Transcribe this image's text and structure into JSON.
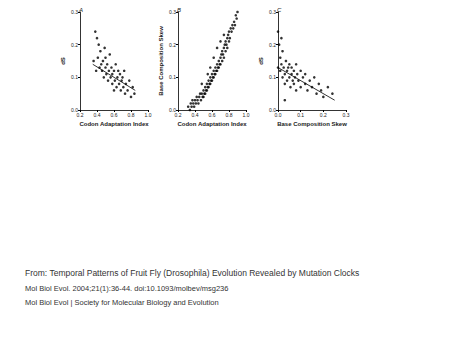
{
  "chart_data": [
    {
      "type": "scatter",
      "title": "A",
      "x_label": "Codon Adaptation Index",
      "y_label": "dS",
      "xlim": [
        0.2,
        1.0
      ],
      "xticks": [
        0.2,
        0.4,
        0.6,
        0.8,
        {
          "value": 1.0,
          "label": "1.0"
        }
      ],
      "ylim": [
        0,
        0.3
      ],
      "yticks": [
        {
          "value": 0,
          "label": "0.0"
        },
        0.1,
        0.2,
        0.3
      ],
      "color": "#000000",
      "marker": "circle",
      "x": [
        0.38,
        0.4,
        0.42,
        0.41,
        0.44,
        0.45,
        0.46,
        0.47,
        0.48,
        0.5,
        0.5,
        0.51,
        0.52,
        0.53,
        0.54,
        0.55,
        0.56,
        0.57,
        0.58,
        0.58,
        0.6,
        0.61,
        0.62,
        0.63,
        0.64,
        0.65,
        0.66,
        0.67,
        0.68,
        0.69,
        0.7,
        0.71,
        0.72,
        0.73,
        0.74,
        0.76,
        0.78,
        0.8,
        0.82,
        0.84,
        0.43,
        0.49,
        0.36,
        0.39,
        0.6
      ],
      "values": [
        0.24,
        0.22,
        0.2,
        0.16,
        0.18,
        0.14,
        0.12,
        0.15,
        0.1,
        0.13,
        0.16,
        0.11,
        0.14,
        0.09,
        0.12,
        0.17,
        0.1,
        0.13,
        0.08,
        0.11,
        0.12,
        0.09,
        0.14,
        0.07,
        0.1,
        0.12,
        0.08,
        0.11,
        0.06,
        0.09,
        0.1,
        0.07,
        0.12,
        0.05,
        0.08,
        0.06,
        0.09,
        0.04,
        0.07,
        0.05,
        0.13,
        0.19,
        0.15,
        0.12,
        0.06
      ],
      "fit_line": {
        "x": [
          0.35,
          0.85
        ],
        "values": [
          0.14,
          0.06
        ]
      }
    },
    {
      "type": "scatter",
      "title": "B",
      "x_label": "Codon Adaptation Index",
      "y_label": "Base Composition Skew",
      "xlim": [
        0.2,
        1.0
      ],
      "xticks": [
        0.2,
        0.4,
        0.6,
        0.8,
        {
          "value": 1.0,
          "label": "1.0"
        }
      ],
      "ylim": [
        0,
        0.3
      ],
      "yticks": [
        {
          "value": 0,
          "label": "0.0"
        },
        0.1,
        0.2,
        0.3
      ],
      "color": "#000000",
      "marker": "circle",
      "x": [
        0.32,
        0.34,
        0.35,
        0.36,
        0.37,
        0.38,
        0.39,
        0.4,
        0.41,
        0.42,
        0.43,
        0.44,
        0.45,
        0.46,
        0.47,
        0.48,
        0.49,
        0.5,
        0.5,
        0.51,
        0.52,
        0.52,
        0.53,
        0.54,
        0.54,
        0.55,
        0.56,
        0.56,
        0.57,
        0.58,
        0.58,
        0.59,
        0.6,
        0.6,
        0.61,
        0.62,
        0.62,
        0.63,
        0.64,
        0.64,
        0.65,
        0.66,
        0.66,
        0.67,
        0.68,
        0.68,
        0.69,
        0.7,
        0.7,
        0.71,
        0.72,
        0.72,
        0.73,
        0.74,
        0.74,
        0.75,
        0.76,
        0.76,
        0.77,
        0.78,
        0.78,
        0.79,
        0.8,
        0.8,
        0.81,
        0.82,
        0.83,
        0.84,
        0.85,
        0.86,
        0.87,
        0.88,
        0.89,
        0.9,
        0.62,
        0.66,
        0.7,
        0.58,
        0.74,
        0.48,
        0.55
      ],
      "values": [
        0.01,
        0.0,
        0.02,
        0.01,
        0.03,
        0.02,
        0.01,
        0.03,
        0.02,
        0.04,
        0.03,
        0.02,
        0.04,
        0.05,
        0.03,
        0.05,
        0.04,
        0.06,
        0.04,
        0.05,
        0.07,
        0.05,
        0.06,
        0.08,
        0.06,
        0.07,
        0.09,
        0.07,
        0.08,
        0.1,
        0.08,
        0.09,
        0.11,
        0.09,
        0.1,
        0.12,
        0.1,
        0.11,
        0.13,
        0.11,
        0.12,
        0.14,
        0.12,
        0.13,
        0.15,
        0.13,
        0.14,
        0.16,
        0.14,
        0.17,
        0.15,
        0.18,
        0.17,
        0.19,
        0.16,
        0.2,
        0.18,
        0.21,
        0.2,
        0.22,
        0.19,
        0.23,
        0.21,
        0.24,
        0.22,
        0.25,
        0.24,
        0.26,
        0.25,
        0.27,
        0.26,
        0.29,
        0.28,
        0.3,
        0.16,
        0.19,
        0.21,
        0.13,
        0.23,
        0.08,
        0.11
      ]
    },
    {
      "type": "scatter",
      "title": "C",
      "x_label": "Base Composition Skew",
      "y_label": "dS",
      "xlim": [
        0,
        0.3
      ],
      "xticks": [
        {
          "value": 0,
          "label": "0.0"
        },
        0.1,
        0.2,
        0.3
      ],
      "ylim": [
        0,
        0.3
      ],
      "yticks": [
        {
          "value": 0,
          "label": "0.0"
        },
        0.1,
        0.2,
        0.3
      ],
      "color": "#000000",
      "marker": "circle",
      "x": [
        0.0,
        0.005,
        0.01,
        0.01,
        0.015,
        0.02,
        0.02,
        0.025,
        0.03,
        0.03,
        0.035,
        0.04,
        0.04,
        0.045,
        0.05,
        0.05,
        0.055,
        0.06,
        0.06,
        0.065,
        0.07,
        0.07,
        0.075,
        0.08,
        0.08,
        0.085,
        0.09,
        0.1,
        0.1,
        0.11,
        0.12,
        0.12,
        0.13,
        0.14,
        0.15,
        0.16,
        0.17,
        0.18,
        0.19,
        0.2,
        0.22,
        0.24,
        0.015,
        0.0,
        0.03
      ],
      "values": [
        0.24,
        0.2,
        0.16,
        0.12,
        0.14,
        0.1,
        0.18,
        0.13,
        0.11,
        0.08,
        0.15,
        0.12,
        0.09,
        0.13,
        0.1,
        0.14,
        0.07,
        0.11,
        0.13,
        0.09,
        0.12,
        0.08,
        0.1,
        0.14,
        0.06,
        0.11,
        0.09,
        0.12,
        0.07,
        0.1,
        0.08,
        0.11,
        0.06,
        0.09,
        0.07,
        0.1,
        0.05,
        0.08,
        0.06,
        0.04,
        0.07,
        0.05,
        0.22,
        0.13,
        0.03
      ],
      "fit_line": {
        "x": [
          0.0,
          0.25
        ],
        "values": [
          0.13,
          0.03
        ]
      }
    }
  ],
  "caption": [
    "From: Temporal Patterns of Fruit Fly (Drosophila) Evolution Revealed by Mutation Clocks",
    "Mol Biol Evol. 2004;21(1):36-44. doi:10.1093/molbev/msg236",
    "Mol Biol Evol | Society for Molecular Biology and Evolution"
  ]
}
